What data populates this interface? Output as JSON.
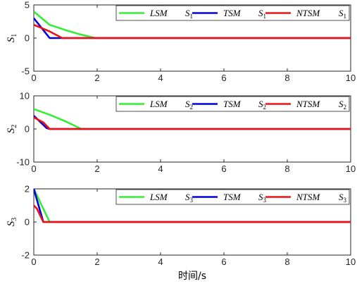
{
  "chart_data": [
    {
      "type": "line",
      "ylabel": "S",
      "ylabel_sub": "1",
      "xlim": [
        0,
        10
      ],
      "ylim": [
        -5,
        5
      ],
      "xticks": [
        0,
        2,
        4,
        6,
        8,
        10
      ],
      "yticks": [
        -5,
        0,
        5
      ],
      "legend_position": "top-right",
      "series": [
        {
          "name": "LSM",
          "signal": "S",
          "signal_sub": "1",
          "color": "#33ee33",
          "x": [
            0,
            0.5,
            1.0,
            1.5,
            1.95,
            10
          ],
          "y": [
            4,
            2,
            1.2,
            0.5,
            0,
            0
          ]
        },
        {
          "name": "TSM",
          "signal": "S",
          "signal_sub": "1",
          "color": "#0000dd",
          "x": [
            0,
            0.5,
            10
          ],
          "y": [
            3,
            0,
            0
          ]
        },
        {
          "name": "NTSM",
          "signal": "S",
          "signal_sub": "1",
          "color": "#ee1111",
          "x": [
            0,
            0.5,
            0.9,
            10
          ],
          "y": [
            2,
            1,
            0,
            0
          ]
        }
      ]
    },
    {
      "type": "line",
      "ylabel": "S",
      "ylabel_sub": "2",
      "xlim": [
        0,
        10
      ],
      "ylim": [
        -10,
        10
      ],
      "xticks": [
        0,
        2,
        4,
        6,
        8,
        10
      ],
      "yticks": [
        -10,
        0,
        10
      ],
      "legend_position": "top-right",
      "series": [
        {
          "name": "LSM",
          "signal": "S",
          "signal_sub": "2",
          "color": "#33ee33",
          "x": [
            0,
            0.5,
            1.0,
            1.5,
            10
          ],
          "y": [
            6,
            4.3,
            2.3,
            0,
            0
          ]
        },
        {
          "name": "TSM",
          "signal": "S",
          "signal_sub": "2",
          "color": "#0000dd",
          "x": [
            0,
            0.4,
            0.5,
            10
          ],
          "y": [
            4,
            0.3,
            0,
            0
          ]
        },
        {
          "name": "NTSM",
          "signal": "S",
          "signal_sub": "2",
          "color": "#ee1111",
          "x": [
            0,
            0.3,
            0.5,
            10
          ],
          "y": [
            3.5,
            2,
            0,
            0
          ]
        }
      ]
    },
    {
      "type": "line",
      "ylabel": "S",
      "ylabel_sub": "3",
      "xlim": [
        0,
        10
      ],
      "ylim": [
        -2,
        2
      ],
      "xticks": [
        0,
        2,
        4,
        6,
        8,
        10
      ],
      "yticks": [
        -2,
        0,
        2
      ],
      "xlabel": "时间/s",
      "legend_position": "top-right",
      "series": [
        {
          "name": "LSM",
          "signal": "S",
          "signal_sub": "3",
          "color": "#33ee33",
          "x": [
            0,
            0.5,
            10
          ],
          "y": [
            2,
            0,
            0
          ]
        },
        {
          "name": "TSM",
          "signal": "S",
          "signal_sub": "3",
          "color": "#0000dd",
          "x": [
            0,
            0.3,
            10
          ],
          "y": [
            2,
            0,
            0
          ]
        },
        {
          "name": "NTSM",
          "signal": "S",
          "signal_sub": "3",
          "color": "#ee1111",
          "x": [
            0,
            0.1,
            0.3,
            10
          ],
          "y": [
            1,
            0.8,
            0,
            0
          ]
        }
      ]
    }
  ]
}
